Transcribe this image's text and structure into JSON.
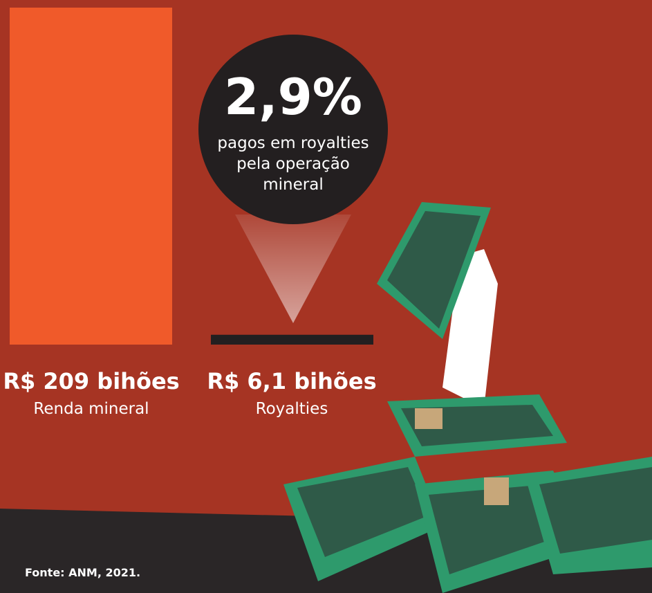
{
  "chart_data": {
    "type": "bar",
    "categories": [
      "Renda mineral",
      "Royalties"
    ],
    "values": [
      209,
      6.1
    ],
    "value_labels": [
      "R$ 209 bihões",
      "R$ 6,1 bihões"
    ],
    "colors": [
      "#f05a2a",
      "#231f20"
    ],
    "annotation": {
      "value": "2,9%",
      "text": "pagos em royalties pela operação mineral"
    },
    "source": "Fonte: ANM, 2021."
  }
}
